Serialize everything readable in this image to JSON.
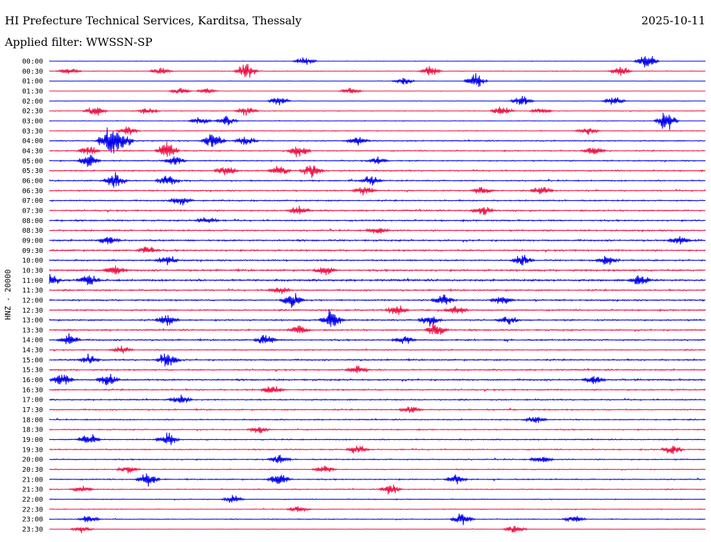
{
  "header": {
    "station": "HI Prefecture Technical Services, Karditsa, Thessaly",
    "date": "2025-10-11",
    "filter": "Applied filter: WWSSN-SP"
  },
  "chart_data": {
    "type": "line",
    "subtype": "helicorder",
    "ylabel": "HNZ - 20000",
    "colors": [
      "#0000ee",
      "#ee1144"
    ],
    "rows": [
      {
        "time": "00:00",
        "activity": 0.15,
        "events": [
          [
            0.39,
            0.5
          ],
          [
            0.91,
            0.9
          ]
        ]
      },
      {
        "time": "00:30",
        "activity": 0.2,
        "events": [
          [
            0.03,
            0.4
          ],
          [
            0.17,
            0.4
          ],
          [
            0.3,
            0.9
          ],
          [
            0.58,
            0.6
          ],
          [
            0.87,
            0.6
          ]
        ]
      },
      {
        "time": "01:00",
        "activity": 0.1,
        "events": [
          [
            0.54,
            0.4
          ],
          [
            0.65,
            0.8
          ]
        ]
      },
      {
        "time": "01:30",
        "activity": 0.1,
        "events": [
          [
            0.2,
            0.4
          ],
          [
            0.24,
            0.3
          ],
          [
            0.46,
            0.4
          ]
        ]
      },
      {
        "time": "02:00",
        "activity": 0.15,
        "events": [
          [
            0.35,
            0.5
          ],
          [
            0.72,
            0.6
          ],
          [
            0.86,
            0.5
          ]
        ]
      },
      {
        "time": "02:30",
        "activity": 0.2,
        "events": [
          [
            0.07,
            0.6
          ],
          [
            0.15,
            0.4
          ],
          [
            0.3,
            0.5
          ],
          [
            0.69,
            0.5
          ],
          [
            0.75,
            0.4
          ]
        ]
      },
      {
        "time": "03:00",
        "activity": 0.2,
        "events": [
          [
            0.23,
            0.4
          ],
          [
            0.27,
            0.5
          ],
          [
            0.94,
            1.2
          ]
        ]
      },
      {
        "time": "03:30",
        "activity": 0.25,
        "events": [
          [
            0.12,
            0.5
          ],
          [
            0.82,
            0.4
          ]
        ]
      },
      {
        "time": "04:00",
        "activity": 0.35,
        "events": [
          [
            0.09,
            1.5
          ],
          [
            0.11,
            1.2
          ],
          [
            0.25,
            1.0
          ],
          [
            0.3,
            0.6
          ],
          [
            0.47,
            0.5
          ]
        ]
      },
      {
        "time": "04:30",
        "activity": 0.35,
        "events": [
          [
            0.06,
            0.6
          ],
          [
            0.18,
            1.0
          ],
          [
            0.38,
            0.7
          ],
          [
            0.83,
            0.5
          ]
        ]
      },
      {
        "time": "05:00",
        "activity": 0.35,
        "events": [
          [
            0.06,
            0.8
          ],
          [
            0.19,
            0.6
          ],
          [
            0.5,
            0.4
          ]
        ]
      },
      {
        "time": "05:30",
        "activity": 0.4,
        "events": [
          [
            0.27,
            0.6
          ],
          [
            0.35,
            0.7
          ],
          [
            0.4,
            0.8
          ]
        ]
      },
      {
        "time": "06:00",
        "activity": 0.4,
        "events": [
          [
            0.1,
            0.9
          ],
          [
            0.18,
            0.6
          ],
          [
            0.49,
            0.5
          ]
        ]
      },
      {
        "time": "06:30",
        "activity": 0.4,
        "events": [
          [
            0.48,
            0.5
          ],
          [
            0.66,
            0.5
          ],
          [
            0.75,
            0.5
          ]
        ]
      },
      {
        "time": "07:00",
        "activity": 0.4,
        "events": [
          [
            0.2,
            0.5
          ]
        ]
      },
      {
        "time": "07:30",
        "activity": 0.45,
        "events": [
          [
            0.38,
            0.5
          ],
          [
            0.66,
            0.5
          ]
        ]
      },
      {
        "time": "08:00",
        "activity": 0.45,
        "events": [
          [
            0.24,
            0.4
          ]
        ]
      },
      {
        "time": "08:30",
        "activity": 0.45,
        "events": [
          [
            0.5,
            0.4
          ]
        ]
      },
      {
        "time": "09:00",
        "activity": 0.5,
        "events": [
          [
            0.09,
            0.5
          ],
          [
            0.96,
            0.5
          ]
        ]
      },
      {
        "time": "09:30",
        "activity": 0.5,
        "events": [
          [
            0.15,
            0.4
          ]
        ]
      },
      {
        "time": "10:00",
        "activity": 0.45,
        "events": [
          [
            0.18,
            0.5
          ],
          [
            0.72,
            0.6
          ],
          [
            0.85,
            0.5
          ]
        ]
      },
      {
        "time": "10:30",
        "activity": 0.55,
        "events": [
          [
            0.1,
            0.6
          ],
          [
            0.42,
            0.5
          ]
        ]
      },
      {
        "time": "11:00",
        "activity": 0.6,
        "events": [
          [
            0.0,
            0.8
          ],
          [
            0.06,
            0.6
          ],
          [
            0.9,
            0.6
          ]
        ]
      },
      {
        "time": "11:30",
        "activity": 0.45,
        "events": [
          [
            0.35,
            0.4
          ]
        ]
      },
      {
        "time": "12:00",
        "activity": 0.45,
        "events": [
          [
            0.37,
            0.9
          ],
          [
            0.6,
            0.7
          ],
          [
            0.69,
            0.5
          ]
        ]
      },
      {
        "time": "12:30",
        "activity": 0.45,
        "events": [
          [
            0.53,
            0.6
          ],
          [
            0.62,
            0.5
          ]
        ]
      },
      {
        "time": "13:00",
        "activity": 0.45,
        "events": [
          [
            0.18,
            0.6
          ],
          [
            0.43,
            1.2
          ],
          [
            0.58,
            0.6
          ],
          [
            0.7,
            0.5
          ]
        ]
      },
      {
        "time": "13:30",
        "activity": 0.45,
        "events": [
          [
            0.59,
            0.9
          ],
          [
            0.38,
            0.5
          ]
        ]
      },
      {
        "time": "14:00",
        "activity": 0.45,
        "events": [
          [
            0.03,
            0.6
          ],
          [
            0.33,
            0.6
          ],
          [
            0.54,
            0.5
          ]
        ]
      },
      {
        "time": "14:30",
        "activity": 0.35,
        "events": [
          [
            0.11,
            0.4
          ]
        ]
      },
      {
        "time": "15:00",
        "activity": 0.45,
        "events": [
          [
            0.18,
            1.0
          ],
          [
            0.06,
            0.5
          ]
        ]
      },
      {
        "time": "15:30",
        "activity": 0.45,
        "events": [
          [
            0.47,
            0.6
          ]
        ]
      },
      {
        "time": "16:00",
        "activity": 0.5,
        "events": [
          [
            0.02,
            0.8
          ],
          [
            0.09,
            0.7
          ],
          [
            0.83,
            0.5
          ]
        ]
      },
      {
        "time": "16:30",
        "activity": 0.45,
        "events": [
          [
            0.34,
            0.5
          ]
        ]
      },
      {
        "time": "17:00",
        "activity": 0.4,
        "events": [
          [
            0.2,
            0.5
          ]
        ]
      },
      {
        "time": "17:30",
        "activity": 0.4,
        "events": [
          [
            0.55,
            0.4
          ]
        ]
      },
      {
        "time": "18:00",
        "activity": 0.35,
        "events": [
          [
            0.74,
            0.4
          ]
        ]
      },
      {
        "time": "18:30",
        "activity": 0.35,
        "events": [
          [
            0.32,
            0.4
          ]
        ]
      },
      {
        "time": "19:00",
        "activity": 0.35,
        "events": [
          [
            0.06,
            0.7
          ],
          [
            0.18,
            0.8
          ]
        ]
      },
      {
        "time": "19:30",
        "activity": 0.35,
        "events": [
          [
            0.47,
            0.5
          ],
          [
            0.95,
            0.5
          ]
        ]
      },
      {
        "time": "20:00",
        "activity": 0.35,
        "events": [
          [
            0.35,
            0.5
          ],
          [
            0.75,
            0.5
          ]
        ]
      },
      {
        "time": "20:30",
        "activity": 0.3,
        "events": [
          [
            0.12,
            0.4
          ],
          [
            0.42,
            0.4
          ]
        ]
      },
      {
        "time": "21:00",
        "activity": 0.35,
        "events": [
          [
            0.15,
            0.8
          ],
          [
            0.35,
            0.7
          ],
          [
            0.62,
            0.5
          ]
        ]
      },
      {
        "time": "21:30",
        "activity": 0.3,
        "events": [
          [
            0.05,
            0.4
          ],
          [
            0.52,
            0.6
          ]
        ]
      },
      {
        "time": "22:00",
        "activity": 0.25,
        "events": [
          [
            0.28,
            0.4
          ]
        ]
      },
      {
        "time": "22:30",
        "activity": 0.25,
        "events": [
          [
            0.38,
            0.4
          ]
        ]
      },
      {
        "time": "23:00",
        "activity": 0.25,
        "events": [
          [
            0.06,
            0.4
          ],
          [
            0.63,
            0.7
          ],
          [
            0.8,
            0.4
          ]
        ]
      },
      {
        "time": "23:30",
        "activity": 0.15,
        "events": [
          [
            0.05,
            0.4
          ],
          [
            0.71,
            0.5
          ]
        ]
      }
    ]
  }
}
